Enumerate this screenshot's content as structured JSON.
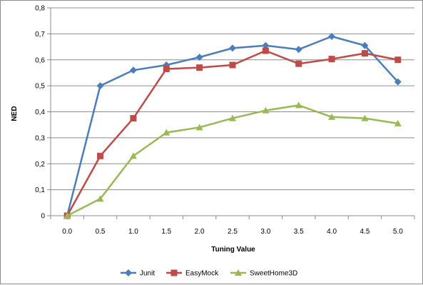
{
  "chart_data": {
    "type": "line",
    "title": "",
    "xlabel": "Tuning Value",
    "ylabel": "NED",
    "x": [
      "0.0",
      "0.5",
      "1.0",
      "1.5",
      "2.0",
      "2.5",
      "3.0",
      "3.5",
      "4.0",
      "4.5",
      "5.0"
    ],
    "y_ticks": [
      "0",
      "0,1",
      "0,2",
      "0,3",
      "0,4",
      "0,5",
      "0,6",
      "0,7",
      "0,8"
    ],
    "ylim": [
      0,
      0.8
    ],
    "grid": "horizontal",
    "legend_position": "bottom",
    "series": [
      {
        "name": "Junit",
        "color": "#4a7ebb",
        "marker": "diamond",
        "values": [
          0,
          0.5,
          0.56,
          0.58,
          0.61,
          0.645,
          0.655,
          0.64,
          0.69,
          0.655,
          0.515
        ]
      },
      {
        "name": "EasyMock",
        "color": "#be4b48",
        "marker": "square",
        "values": [
          0,
          0.23,
          0.375,
          0.565,
          0.57,
          0.58,
          0.635,
          0.585,
          0.603,
          0.625,
          0.6
        ]
      },
      {
        "name": "SweetHome3D",
        "color": "#98b954",
        "marker": "triangle",
        "values": [
          0,
          0.065,
          0.23,
          0.32,
          0.34,
          0.375,
          0.405,
          0.425,
          0.38,
          0.375,
          0.355
        ]
      }
    ]
  }
}
